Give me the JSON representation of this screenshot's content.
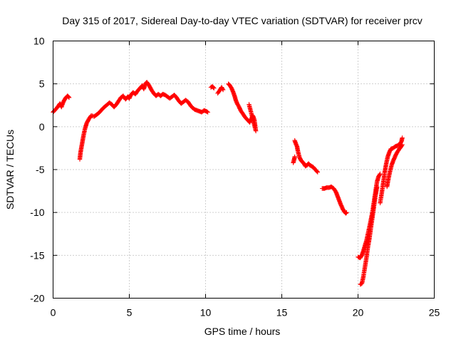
{
  "chart_data": {
    "type": "scatter",
    "title": "Day 315 of 2017, Sidereal Day-to-day VTEC variation (SDTVAR) for receiver prcv",
    "xlabel": "GPS time / hours",
    "ylabel": "SDTVAR / TECUs",
    "xlim": [
      0,
      25
    ],
    "ylim": [
      -20,
      10
    ],
    "xticks": [
      0,
      5,
      10,
      15,
      20,
      25
    ],
    "yticks": [
      -20,
      -15,
      -10,
      -5,
      0,
      5,
      10
    ],
    "grid": true,
    "marker": "+",
    "color": "#ff0000",
    "series": [
      {
        "name": "SDTVAR",
        "segments": [
          [
            [
              0.0,
              1.7
            ],
            [
              0.15,
              2.0
            ],
            [
              0.3,
              2.3
            ],
            [
              0.45,
              2.7
            ],
            [
              0.55,
              2.3
            ],
            [
              0.65,
              2.8
            ],
            [
              0.8,
              3.3
            ],
            [
              0.95,
              3.6
            ],
            [
              1.05,
              3.4
            ]
          ],
          [
            [
              1.75,
              -3.8
            ],
            [
              1.8,
              -3.0
            ],
            [
              1.9,
              -2.0
            ],
            [
              2.0,
              -1.0
            ],
            [
              2.1,
              -0.2
            ],
            [
              2.2,
              0.4
            ],
            [
              2.35,
              0.9
            ],
            [
              2.5,
              1.3
            ],
            [
              2.7,
              1.2
            ],
            [
              2.85,
              1.4
            ],
            [
              3.0,
              1.6
            ],
            [
              3.15,
              1.9
            ],
            [
              3.3,
              2.2
            ],
            [
              3.5,
              2.5
            ],
            [
              3.7,
              2.8
            ],
            [
              3.85,
              2.6
            ],
            [
              4.0,
              2.3
            ],
            [
              4.15,
              2.6
            ],
            [
              4.3,
              3.0
            ],
            [
              4.45,
              3.4
            ],
            [
              4.6,
              3.6
            ],
            [
              4.75,
              3.2
            ],
            [
              4.9,
              3.5
            ],
            [
              5.0,
              3.3
            ],
            [
              5.1,
              3.7
            ],
            [
              5.25,
              4.0
            ],
            [
              5.4,
              3.8
            ],
            [
              5.55,
              4.2
            ],
            [
              5.7,
              4.5
            ],
            [
              5.85,
              4.8
            ],
            [
              5.95,
              4.4
            ],
            [
              6.05,
              5.0
            ],
            [
              6.15,
              5.2
            ],
            [
              6.3,
              4.8
            ],
            [
              6.45,
              4.3
            ],
            [
              6.6,
              3.9
            ],
            [
              6.75,
              3.6
            ],
            [
              6.9,
              3.8
            ],
            [
              7.05,
              3.6
            ],
            [
              7.2,
              3.8
            ],
            [
              7.35,
              3.7
            ],
            [
              7.5,
              3.5
            ],
            [
              7.65,
              3.3
            ],
            [
              7.8,
              3.5
            ],
            [
              7.95,
              3.7
            ],
            [
              8.1,
              3.4
            ],
            [
              8.25,
              3.0
            ],
            [
              8.4,
              2.7
            ],
            [
              8.55,
              2.9
            ],
            [
              8.7,
              3.1
            ],
            [
              8.85,
              2.9
            ],
            [
              9.0,
              2.5
            ],
            [
              9.15,
              2.2
            ],
            [
              9.3,
              2.0
            ],
            [
              9.45,
              1.9
            ],
            [
              9.6,
              1.8
            ],
            [
              9.75,
              1.7
            ],
            [
              9.9,
              1.9
            ],
            [
              10.05,
              1.8
            ],
            [
              10.15,
              1.7
            ]
          ],
          [
            [
              10.35,
              4.6
            ],
            [
              10.45,
              4.7
            ],
            [
              10.55,
              4.5
            ]
          ],
          [
            [
              10.8,
              3.9
            ],
            [
              10.95,
              4.3
            ],
            [
              11.05,
              4.6
            ],
            [
              11.15,
              4.3
            ]
          ],
          [
            [
              11.5,
              5.0
            ],
            [
              11.6,
              4.8
            ],
            [
              11.7,
              4.5
            ],
            [
              11.8,
              4.1
            ],
            [
              11.9,
              3.6
            ],
            [
              12.0,
              3.0
            ],
            [
              12.1,
              2.6
            ],
            [
              12.2,
              2.3
            ],
            [
              12.3,
              1.9
            ],
            [
              12.45,
              1.5
            ],
            [
              12.6,
              1.1
            ],
            [
              12.75,
              0.8
            ],
            [
              12.9,
              0.5
            ],
            [
              13.0,
              0.9
            ],
            [
              13.1,
              1.3
            ],
            [
              13.2,
              0.8
            ],
            [
              13.3,
              -0.5
            ],
            [
              12.85,
              2.6
            ]
          ],
          [
            [
              15.75,
              -4.2
            ],
            [
              15.8,
              -3.9
            ],
            [
              15.85,
              -3.5
            ]
          ],
          [
            [
              15.85,
              -1.6
            ],
            [
              15.9,
              -1.9
            ],
            [
              16.0,
              -2.3
            ],
            [
              16.05,
              -2.8
            ],
            [
              16.15,
              -3.5
            ],
            [
              16.25,
              -3.9
            ],
            [
              16.35,
              -4.1
            ],
            [
              16.45,
              -4.3
            ],
            [
              16.55,
              -4.6
            ],
            [
              16.65,
              -4.5
            ],
            [
              16.75,
              -4.3
            ],
            [
              16.85,
              -4.5
            ],
            [
              16.95,
              -4.6
            ],
            [
              17.05,
              -4.7
            ],
            [
              17.2,
              -5.0
            ],
            [
              17.35,
              -5.3
            ]
          ],
          [
            [
              17.65,
              -7.2
            ],
            [
              17.8,
              -7.2
            ],
            [
              17.95,
              -7.1
            ],
            [
              18.1,
              -7.1
            ],
            [
              18.25,
              -7.0
            ],
            [
              18.4,
              -7.2
            ],
            [
              18.55,
              -7.6
            ],
            [
              18.7,
              -8.3
            ],
            [
              18.85,
              -9.0
            ],
            [
              19.0,
              -9.6
            ],
            [
              19.1,
              -9.9
            ],
            [
              19.2,
              -10.1
            ],
            [
              19.25,
              -10.0
            ]
          ],
          [
            [
              20.0,
              -15.2
            ],
            [
              20.15,
              -15.3
            ],
            [
              20.25,
              -15.0
            ],
            [
              20.35,
              -14.5
            ],
            [
              20.45,
              -13.9
            ],
            [
              20.55,
              -13.3
            ],
            [
              20.65,
              -12.5
            ],
            [
              20.75,
              -11.7
            ],
            [
              20.85,
              -10.8
            ],
            [
              20.95,
              -9.9
            ],
            [
              21.05,
              -8.7
            ],
            [
              21.15,
              -7.5
            ],
            [
              21.25,
              -6.4
            ],
            [
              21.35,
              -5.8
            ],
            [
              21.45,
              -5.5
            ]
          ],
          [
            [
              20.15,
              -18.4
            ],
            [
              20.25,
              -18.3
            ],
            [
              20.35,
              -17.5
            ],
            [
              20.45,
              -16.4
            ],
            [
              20.55,
              -15.3
            ],
            [
              20.65,
              -14.0
            ],
            [
              20.75,
              -13.0
            ],
            [
              20.85,
              -11.7
            ],
            [
              20.95,
              -10.5
            ],
            [
              21.05,
              -9.2
            ],
            [
              21.15,
              -8.0
            ],
            [
              21.25,
              -7.0
            ]
          ],
          [
            [
              21.45,
              -8.9
            ],
            [
              21.55,
              -7.8
            ],
            [
              21.65,
              -6.6
            ],
            [
              21.75,
              -5.3
            ],
            [
              21.85,
              -4.3
            ],
            [
              21.95,
              -3.5
            ],
            [
              22.05,
              -3.0
            ],
            [
              22.15,
              -2.6
            ],
            [
              22.3,
              -2.5
            ],
            [
              22.45,
              -2.3
            ],
            [
              22.6,
              -2.2
            ],
            [
              22.75,
              -2.0
            ],
            [
              22.85,
              -1.7
            ],
            [
              22.9,
              -1.3
            ]
          ],
          [
            [
              21.9,
              -7.0
            ],
            [
              22.0,
              -6.0
            ],
            [
              22.1,
              -5.2
            ],
            [
              22.2,
              -4.5
            ],
            [
              22.3,
              -4.0
            ],
            [
              22.4,
              -3.6
            ],
            [
              22.5,
              -3.2
            ],
            [
              22.6,
              -2.9
            ],
            [
              22.7,
              -2.6
            ],
            [
              22.8,
              -2.4
            ],
            [
              22.9,
              -2.1
            ]
          ]
        ]
      }
    ]
  }
}
